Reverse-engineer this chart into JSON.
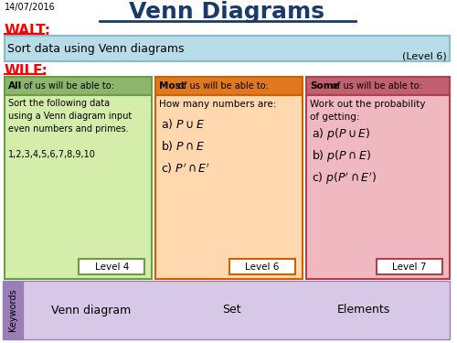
{
  "title": "Venn Diagrams",
  "date": "14/07/2016",
  "walt_label": "WALT:",
  "walt_text": "Sort data using Venn diagrams",
  "level_walt": "(Level 6)",
  "wilf_label": "WILF:",
  "box1_header_bold": "All",
  "box1_header_rest": " of us will be able to:",
  "box1_body": "Sort the following data\nusing a Venn diagram input\neven numbers and primes.\n\n1,2,3,4,5,6,7,8,9,10",
  "box1_level": "Level 4",
  "box2_header_bold": "Most",
  "box2_header_rest": " of us will be able to:",
  "box2_body_plain": "How many numbers are:",
  "box2_items": [
    "a) $P\\cup E$",
    "b) $P\\cap E$",
    "c) $P'\\cap E'$"
  ],
  "box2_level": "Level 6",
  "box3_header_bold": "Some",
  "box3_header_rest": " of us will be able to:",
  "box3_body_plain": "Work out the probability\nof getting:",
  "box3_items": [
    "a) $p(P\\cup E)$",
    "b) $p(P\\cap E)$",
    "c) $p(P'\\cap E')$"
  ],
  "box3_level": "Level 7",
  "keywords_label": "Keywords",
  "keywords": [
    "Venn diagram",
    "Set",
    "Elements"
  ],
  "bg_color": "#ffffff",
  "title_color": "#1a3a6b",
  "walt_color": "#ff0000",
  "wilf_color": "#ff0000",
  "walt_bg": "#b8dde8",
  "walt_border": "#88bbcc",
  "box1_header_bg": "#8db56e",
  "box1_body_bg": "#d4edaa",
  "box1_border": "#6a9e40",
  "box2_header_bg": "#e07820",
  "box2_body_bg": "#ffd8b0",
  "box2_border": "#d06000",
  "box3_header_bg": "#c06070",
  "box3_body_bg": "#f0b8c0",
  "box3_border": "#b04050",
  "keywords_side_bg": "#9b7eb8",
  "keywords_main_bg": "#d8c8e8",
  "keywords_border": "#9b7eb8",
  "level_box_bg": "#ffffff"
}
